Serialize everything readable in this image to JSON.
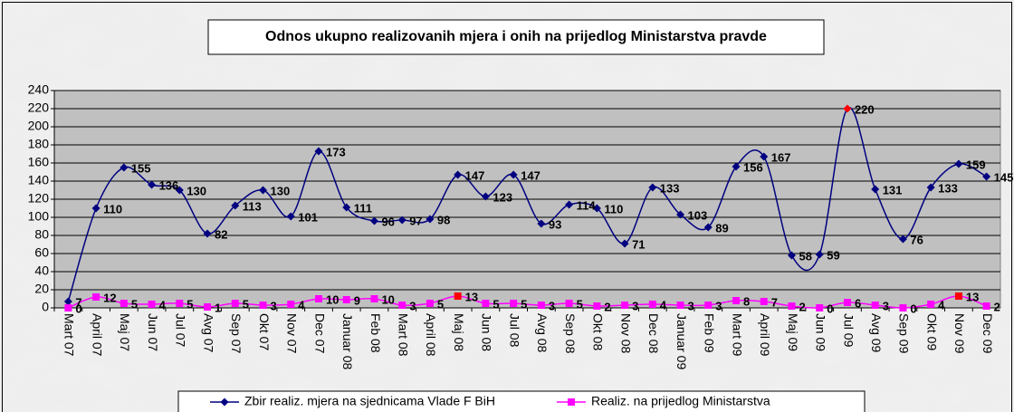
{
  "chart_data": {
    "type": "line",
    "title": "Odnos ukupno realizovanih mjera i onih na prijedlog Ministarstva pravde",
    "categories": [
      "Mart 07",
      "April 07",
      "Maj 07",
      "Jun 07",
      "Jul 07",
      "Avg 07",
      "Sep 07",
      "Okt 07",
      "Nov 07",
      "Dec 07",
      "Januar 08",
      "Feb 08",
      "Mart 08",
      "April 08",
      "Maj 08",
      "Jun 08",
      "Jul 08",
      "Avg 08",
      "Sep 08",
      "Okt 08",
      "Nov 08",
      "Dec 08",
      "Januar 09",
      "Feb 09",
      "Mart 09",
      "April 09",
      "Maj 09",
      "Jun 09",
      "Jul 09",
      "Avg 09",
      "Sep 09",
      "Okt 09",
      "Nov 09",
      "Dec 09"
    ],
    "series": [
      {
        "name": "Zbir realiz. mjera na sjednicama Vlade F BiH",
        "color": "#000080",
        "marker": "diamond",
        "values": [
          7,
          110,
          155,
          136,
          130,
          82,
          113,
          130,
          101,
          173,
          111,
          96,
          97,
          98,
          147,
          123,
          147,
          93,
          114,
          110,
          71,
          133,
          103,
          89,
          156,
          167,
          58,
          59,
          220,
          131,
          76,
          133,
          159,
          145
        ],
        "highlight": [
          28
        ],
        "highlight_color": "#ff0000"
      },
      {
        "name": "Realiz. na prijedlog Ministarstva",
        "color": "#ff00ff",
        "marker": "square",
        "values": [
          0,
          12,
          5,
          4,
          5,
          1,
          5,
          3,
          4,
          10,
          9,
          10,
          3,
          5,
          13,
          5,
          5,
          3,
          5,
          2,
          3,
          4,
          3,
          3,
          8,
          7,
          2,
          0,
          6,
          3,
          0,
          4,
          13,
          2
        ],
        "highlight": [
          14,
          32
        ],
        "highlight_color": "#ff0000"
      }
    ],
    "ylim": [
      0,
      240
    ],
    "yticks": [
      0,
      20,
      40,
      60,
      80,
      100,
      120,
      140,
      160,
      180,
      200,
      220,
      240
    ],
    "grid": true,
    "smooth": true,
    "legend": "bottom"
  }
}
